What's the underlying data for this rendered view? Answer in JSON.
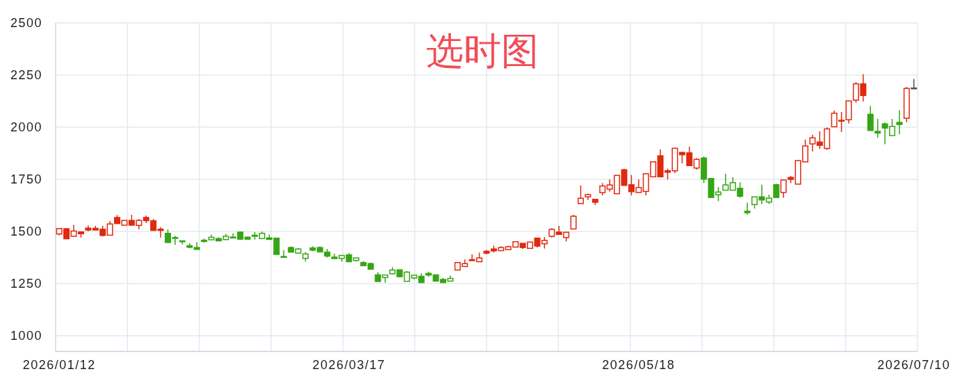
{
  "chart_data": {
    "type": "candlestick",
    "title": "选时图",
    "categories": [
      "2026/01/12",
      null,
      null,
      null,
      null,
      null,
      null,
      null,
      null,
      null,
      null,
      null,
      null,
      null,
      null,
      null,
      null,
      null,
      null,
      null,
      null,
      null,
      null,
      null,
      null,
      null,
      null,
      null,
      null,
      null,
      null,
      null,
      null,
      null,
      null,
      null,
      null,
      null,
      null,
      null,
      "2026/03/17",
      null,
      null,
      null,
      null,
      null,
      null,
      null,
      null,
      null,
      null,
      null,
      null,
      null,
      null,
      null,
      null,
      null,
      null,
      null,
      null,
      null,
      null,
      null,
      null,
      null,
      null,
      null,
      null,
      null,
      null,
      null,
      null,
      null,
      null,
      null,
      null,
      null,
      null,
      null,
      "2026/05/18",
      null,
      null,
      null,
      null,
      null,
      null,
      null,
      null,
      null,
      null,
      null,
      null,
      null,
      null,
      null,
      null,
      null,
      null,
      null,
      null,
      null,
      null,
      null,
      null,
      null,
      null,
      null,
      null,
      null,
      null,
      null,
      null,
      null,
      null,
      null,
      null,
      null,
      "2026/07/10"
    ],
    "ohlc": [
      [
        1488,
        1515,
        1482,
        1514
      ],
      [
        1513,
        1517,
        1464,
        1465
      ],
      [
        1477,
        1532,
        1476,
        1502
      ],
      [
        1498,
        1501,
        1471,
        1489
      ],
      [
        1516,
        1529,
        1501,
        1507
      ],
      [
        1515,
        1527,
        1506,
        1507
      ],
      [
        1511,
        1527,
        1476,
        1481
      ],
      [
        1482,
        1549,
        1482,
        1536
      ],
      [
        1567,
        1579,
        1536,
        1538
      ],
      [
        1530,
        1553,
        1530,
        1553
      ],
      [
        1553,
        1580,
        1530,
        1530
      ],
      [
        1529,
        1560,
        1511,
        1553
      ],
      [
        1567,
        1576,
        1540,
        1552
      ],
      [
        1551,
        1560,
        1504,
        1505
      ],
      [
        1511,
        1521,
        1471,
        1505
      ],
      [
        1491,
        1510,
        1447,
        1447
      ],
      [
        1471,
        1480,
        1436,
        1468
      ],
      [
        1455,
        1455,
        1438,
        1452
      ],
      [
        1432,
        1443,
        1419,
        1424
      ],
      [
        1423,
        1449,
        1413,
        1414
      ],
      [
        1458,
        1466,
        1447,
        1452
      ],
      [
        1460,
        1485,
        1460,
        1472
      ],
      [
        1466,
        1472,
        1454,
        1455
      ],
      [
        1461,
        1488,
        1461,
        1477
      ],
      [
        1473,
        1491,
        1469,
        1469
      ],
      [
        1497,
        1497,
        1459,
        1463
      ],
      [
        1473,
        1475,
        1461,
        1463
      ],
      [
        1482,
        1497,
        1461,
        1477
      ],
      [
        1466,
        1499,
        1466,
        1491
      ],
      [
        1469,
        1486,
        1462,
        1462
      ],
      [
        1468,
        1468,
        1390,
        1390
      ],
      [
        1380,
        1410,
        1376,
        1376
      ],
      [
        1423,
        1429,
        1401,
        1401
      ],
      [
        1396,
        1421,
        1396,
        1416
      ],
      [
        1371,
        1401,
        1355,
        1392
      ],
      [
        1421,
        1429,
        1405,
        1410
      ],
      [
        1423,
        1429,
        1402,
        1402
      ],
      [
        1401,
        1416,
        1375,
        1382
      ],
      [
        1377,
        1393,
        1370,
        1370
      ],
      [
        1371,
        1385,
        1355,
        1385
      ],
      [
        1388,
        1396,
        1355,
        1355
      ],
      [
        1361,
        1373,
        1355,
        1373
      ],
      [
        1351,
        1358,
        1336,
        1336
      ],
      [
        1346,
        1351,
        1319,
        1319
      ],
      [
        1292,
        1305,
        1260,
        1260
      ],
      [
        1279,
        1291,
        1255,
        1291
      ],
      [
        1297,
        1329,
        1297,
        1315
      ],
      [
        1316,
        1316,
        1283,
        1283
      ],
      [
        1261,
        1310,
        1261,
        1305
      ],
      [
        1277,
        1290,
        1271,
        1290
      ],
      [
        1285,
        1299,
        1255,
        1255
      ],
      [
        1299,
        1307,
        1282,
        1291
      ],
      [
        1292,
        1292,
        1262,
        1262
      ],
      [
        1270,
        1277,
        1255,
        1255
      ],
      [
        1262,
        1288,
        1262,
        1275
      ],
      [
        1315,
        1351,
        1315,
        1351
      ],
      [
        1332,
        1366,
        1332,
        1346
      ],
      [
        1365,
        1390,
        1360,
        1360
      ],
      [
        1355,
        1399,
        1355,
        1373
      ],
      [
        1405,
        1412,
        1390,
        1396
      ],
      [
        1416,
        1432,
        1399,
        1407
      ],
      [
        1408,
        1429,
        1408,
        1423
      ],
      [
        1413,
        1432,
        1413,
        1427
      ],
      [
        1425,
        1451,
        1425,
        1451
      ],
      [
        1443,
        1443,
        1416,
        1423
      ],
      [
        1419,
        1449,
        1419,
        1449
      ],
      [
        1468,
        1468,
        1423,
        1430
      ],
      [
        1441,
        1473,
        1418,
        1457
      ],
      [
        1477,
        1516,
        1471,
        1510
      ],
      [
        1497,
        1527,
        1486,
        1486
      ],
      [
        1471,
        1496,
        1452,
        1496
      ],
      [
        1512,
        1580,
        1512,
        1573
      ],
      [
        1634,
        1721,
        1634,
        1659
      ],
      [
        1666,
        1682,
        1651,
        1677
      ],
      [
        1654,
        1654,
        1627,
        1640
      ],
      [
        1686,
        1732,
        1673,
        1718
      ],
      [
        1703,
        1749,
        1691,
        1723
      ],
      [
        1681,
        1769,
        1681,
        1769
      ],
      [
        1796,
        1801,
        1721,
        1721
      ],
      [
        1724,
        1771,
        1673,
        1691
      ],
      [
        1687,
        1749,
        1687,
        1711
      ],
      [
        1692,
        1777,
        1673,
        1777
      ],
      [
        1762,
        1834,
        1762,
        1834
      ],
      [
        1863,
        1893,
        1762,
        1762
      ],
      [
        1791,
        1801,
        1749,
        1784
      ],
      [
        1791,
        1899,
        1780,
        1899
      ],
      [
        1879,
        1882,
        1827,
        1868
      ],
      [
        1877,
        1907,
        1816,
        1816
      ],
      [
        1804,
        1852,
        1797,
        1846
      ],
      [
        1852,
        1860,
        1732,
        1751
      ],
      [
        1754,
        1754,
        1663,
        1663
      ],
      [
        1676,
        1713,
        1646,
        1689
      ],
      [
        1698,
        1777,
        1698,
        1723
      ],
      [
        1698,
        1760,
        1698,
        1734
      ],
      [
        1707,
        1736,
        1662,
        1669
      ],
      [
        1597,
        1638,
        1580,
        1590
      ],
      [
        1629,
        1666,
        1610,
        1666
      ],
      [
        1666,
        1724,
        1632,
        1651
      ],
      [
        1641,
        1677,
        1632,
        1660
      ],
      [
        1724,
        1729,
        1663,
        1663
      ],
      [
        1687,
        1747,
        1662,
        1747
      ],
      [
        1759,
        1766,
        1732,
        1750
      ],
      [
        1727,
        1840,
        1727,
        1840
      ],
      [
        1834,
        1940,
        1834,
        1910
      ],
      [
        1920,
        1963,
        1884,
        1949
      ],
      [
        1929,
        1980,
        1896,
        1913
      ],
      [
        1898,
        1999,
        1891,
        1992
      ],
      [
        2002,
        2080,
        2002,
        2067
      ],
      [
        2033,
        2073,
        1977,
        2029
      ],
      [
        2036,
        2126,
        2018,
        2126
      ],
      [
        2130,
        2216,
        2118,
        2208
      ],
      [
        2208,
        2254,
        2123,
        2152
      ],
      [
        2062,
        2102,
        1984,
        1984
      ],
      [
        1980,
        2040,
        1949,
        1972
      ],
      [
        2016,
        2023,
        1918,
        1996
      ],
      [
        1960,
        2040,
        1960,
        2004
      ],
      [
        2023,
        2082,
        1966,
        2013
      ],
      [
        2043,
        2193,
        2024,
        2186
      ],
      [
        2188,
        2232,
        2188,
        2188
      ]
    ],
    "colors": [
      "#e0290f",
      "#e0290f",
      "#e0290f",
      "#e0290f",
      "#e0290f",
      "#e0290f",
      "#e0290f",
      "#e0290f",
      "#e0290f",
      "#e0290f",
      "#e0290f",
      "#e0290f",
      "#e0290f",
      "#e0290f",
      "#e0290f",
      "#35a615",
      "#35a615",
      "#35a615",
      "#35a615",
      "#35a615",
      "#35a615",
      "#35a615",
      "#35a615",
      "#35a615",
      "#35a615",
      "#35a615",
      "#35a615",
      "#35a615",
      "#35a615",
      "#35a615",
      "#35a615",
      "#35a615",
      "#35a615",
      "#35a615",
      "#35a615",
      "#35a615",
      "#35a615",
      "#35a615",
      "#35a615",
      "#35a615",
      "#35a615",
      "#35a615",
      "#35a615",
      "#35a615",
      "#35a615",
      "#35a615",
      "#35a615",
      "#35a615",
      "#35a615",
      "#35a615",
      "#35a615",
      "#35a615",
      "#35a615",
      "#35a615",
      "#35a615",
      "#e0290f",
      "#e0290f",
      "#e0290f",
      "#e0290f",
      "#e0290f",
      "#e0290f",
      "#e0290f",
      "#e0290f",
      "#e0290f",
      "#e0290f",
      "#e0290f",
      "#e0290f",
      "#e0290f",
      "#e0290f",
      "#e0290f",
      "#e0290f",
      "#e0290f",
      "#e0290f",
      "#e0290f",
      "#e0290f",
      "#e0290f",
      "#e0290f",
      "#e0290f",
      "#e0290f",
      "#e0290f",
      "#e0290f",
      "#e0290f",
      "#e0290f",
      "#e0290f",
      "#e0290f",
      "#e0290f",
      "#e0290f",
      "#e0290f",
      "#e0290f",
      "#35a615",
      "#35a615",
      "#35a615",
      "#35a615",
      "#35a615",
      "#35a615",
      "#35a615",
      "#35a615",
      "#35a615",
      "#35a615",
      "#35a615",
      "#e0290f",
      "#e0290f",
      "#e0290f",
      "#e0290f",
      "#e0290f",
      "#e0290f",
      "#e0290f",
      "#e0290f",
      "#e0290f",
      "#e0290f",
      "#e0290f",
      "#e0290f",
      "#35a615",
      "#35a615",
      "#35a615",
      "#35a615",
      "#35a615",
      "#e0290f",
      "#555555"
    ],
    "ylim": [
      925,
      2500
    ],
    "yticks": [
      1000,
      1250,
      1500,
      1750,
      2000,
      2250,
      2500
    ],
    "grid": true
  }
}
